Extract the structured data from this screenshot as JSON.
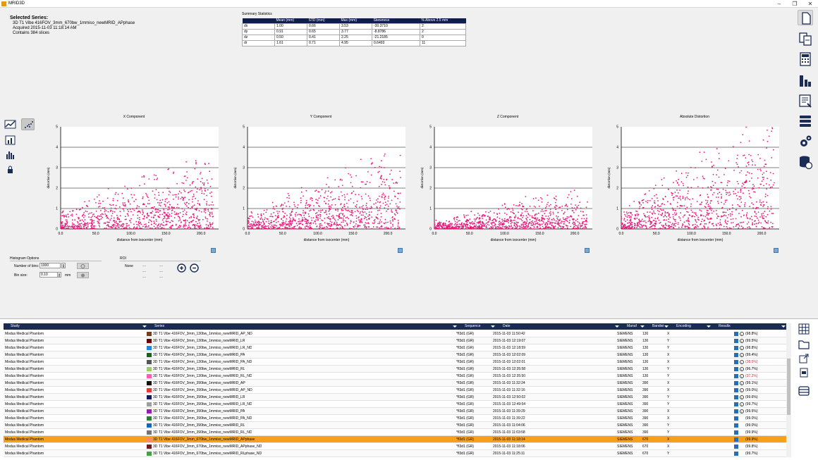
{
  "app": {
    "title": "MRID3D"
  },
  "series_info": {
    "header": "Selected Series:",
    "name": "3D T1 Vibe 416FOV_3mm_670bw_1mmiso_newMRID_APphase",
    "acquired": "Acquired 2015-11-03 11:18:14 AM",
    "slices": "Contains 384 slices"
  },
  "summary": {
    "caption": "Summary Statistics",
    "headers": [
      "",
      "Mean (mm)",
      "STD (mm)",
      "Max (mm)",
      "Skewness",
      "% Above 2.5 mm"
    ],
    "rows": [
      [
        "dx",
        "1.00",
        "0.66",
        "3.53",
        "-30.3710",
        "2"
      ],
      [
        "dy",
        "0.91",
        "0.65",
        "3.77",
        "-8.8786",
        "2"
      ],
      [
        "dz",
        "0.50",
        "0.41",
        "2.25",
        "-21.2185",
        "0"
      ],
      [
        "dr",
        "1.61",
        "0.71",
        "4.95",
        "0.6493",
        "11"
      ]
    ]
  },
  "plots": [
    {
      "title": "X Component",
      "xlabel": "distance from isocenter (mm)",
      "ylabel": "distortion (mm)"
    },
    {
      "title": "Y Component",
      "xlabel": "distance from isocenter (mm)",
      "ylabel": "distortion (mm)"
    },
    {
      "title": "Z Component",
      "xlabel": "distance from isocenter (mm)",
      "ylabel": "distortion (mm)"
    },
    {
      "title": "Absolute Distortion",
      "xlabel": "distance from isocenter (mm)",
      "ylabel": "distortion (mm)"
    }
  ],
  "axis": {
    "x_ticks": [
      "0.0",
      "50.0",
      "100.0",
      "150.0",
      "200.0"
    ],
    "y_ticks": [
      "0",
      "1",
      "2",
      "3",
      "4",
      "5"
    ]
  },
  "colors": {
    "point": "#e8197a",
    "header_bg": "#1a2b55",
    "selected_row": "#f7a11a",
    "table_header": "#0d1f4a"
  },
  "histogram": {
    "title": "Histogram Options",
    "bins_label": "Number of bins:",
    "bins_value": "1000",
    "binsize_label": "Bin size:",
    "binsize_value": "0.10",
    "binsize_unit": "mm"
  },
  "roi": {
    "title": "ROI",
    "value": "None",
    "placeholders": [
      "—",
      "—",
      "—",
      "—",
      "—",
      "—"
    ]
  },
  "grid": {
    "columns": [
      "Study",
      "Series",
      "Sequence",
      "Date",
      "Manuf",
      "Bandwi",
      "Encoding",
      "Results"
    ],
    "rows": [
      {
        "study": "Modus Medical Phantom",
        "series": "3D T1 Vibe 416FOV_3mm_130bw_1mmiso_newMRID_AP_ND",
        "color": "#7a3b1a",
        "seq": "*fl3d1 (GR)",
        "date": "2015-11-03 11:50:42",
        "manuf": "SIEMENS",
        "bw": "130",
        "enc": "X",
        "res": "(98.8%)",
        "warn": false
      },
      {
        "study": "Modus Medical Phantom",
        "series": "3D T1 Vibe 416FOV_3mm_130bw_1mmiso_newMRID_LR",
        "color": "#6b0000",
        "seq": "*fl3d1 (GR)",
        "date": "2015-11-03 12:19:07",
        "manuf": "SIEMENS",
        "bw": "130",
        "enc": "Y",
        "res": "(99.5%)",
        "warn": false
      },
      {
        "study": "Modus Medical Phantom",
        "series": "3D T1 Vibe 416FOV_3mm_130bw_1mmiso_newMRID_LR_ND",
        "color": "#1e88e5",
        "seq": "*fl3d1 (GR)",
        "date": "2015-11-03 12:18:59",
        "manuf": "SIEMENS",
        "bw": "130",
        "enc": "Y",
        "res": "(98.8%)",
        "warn": false
      },
      {
        "study": "Modus Medical Phantom",
        "series": "3D T1 Vibe 416FOV_3mm_130bw_1mmiso_newMRID_PA",
        "color": "#1b5e20",
        "seq": "*fl3d1 (GR)",
        "date": "2015-11-03 12:02:09",
        "manuf": "SIEMENS",
        "bw": "130",
        "enc": "X",
        "res": "(99.4%)",
        "warn": false
      },
      {
        "study": "Modus Medical Phantom",
        "series": "3D T1 Vibe 416FOV_3mm_130bw_1mmiso_newMRID_PA_ND",
        "color": "#555555",
        "seq": "*fl3d1 (GR)",
        "date": "2015-11-03 12:02:01",
        "manuf": "SIEMENS",
        "bw": "130",
        "enc": "X",
        "res": "(38.5%)",
        "warn": true
      },
      {
        "study": "Modus Medical Phantom",
        "series": "3D T1 Vibe 416FOV_3mm_130bw_1mmiso_newMRID_RL",
        "color": "#9ccc65",
        "seq": "*fl3d1 (GR)",
        "date": "2015-11-03 12:35:58",
        "manuf": "SIEMENS",
        "bw": "130",
        "enc": "Y",
        "res": "(96.7%)",
        "warn": false
      },
      {
        "study": "Modus Medical Phantom",
        "series": "3D T1 Vibe 416FOV_3mm_130bw_1mmiso_newMRID_RL_ND",
        "color": "#ff5bb0",
        "seq": "*fl3d1 (GR)",
        "date": "2015-11-03 12:35:50",
        "manuf": "SIEMENS",
        "bw": "130",
        "enc": "Y",
        "res": "(37.2%)",
        "warn": true
      },
      {
        "study": "Modus Medical Phantom",
        "series": "3D T1 Vibe 416FOV_3mm_390bw_1mmiso_newMRID_AP",
        "color": "#111111",
        "seq": "*fl3d1 (GR)",
        "date": "2015-11-03 11:32:24",
        "manuf": "SIEMENS",
        "bw": "390",
        "enc": "X",
        "res": "(99.1%)",
        "warn": false
      },
      {
        "study": "Modus Medical Phantom",
        "series": "3D T1 Vibe 416FOV_3mm_390bw_1mmiso_newMRID_AP_ND",
        "color": "#e53935",
        "seq": "*fl3d1 (GR)",
        "date": "2015-11-03 11:32:16",
        "manuf": "SIEMENS",
        "bw": "390",
        "enc": "X",
        "res": "(99.0%)",
        "warn": false
      },
      {
        "study": "Modus Medical Phantom",
        "series": "3D T1 Vibe 416FOV_3mm_390bw_1mmiso_newMRID_LR",
        "color": "#0d1b5e",
        "seq": "*fl3d1 (GR)",
        "date": "2015-11-03 12:50:02",
        "manuf": "SIEMENS",
        "bw": "390",
        "enc": "Y",
        "res": "(99.6%)",
        "warn": false
      },
      {
        "study": "Modus Medical Phantom",
        "series": "3D T1 Vibe 416FOV_3mm_390bw_1mmiso_newMRID_LR_ND",
        "color": "#9e9e9e",
        "seq": "*fl3d1 (GR)",
        "date": "2015-11-03 12:49:54",
        "manuf": "SIEMENS",
        "bw": "390",
        "enc": "Y",
        "res": "(99.7%)",
        "warn": false
      },
      {
        "study": "Modus Medical Phantom",
        "series": "3D T1 Vibe 416FOV_3mm_390bw_1mmiso_newMRID_PA",
        "color": "#8e24aa",
        "seq": "*fl3d1 (GR)",
        "date": "2015-11-03 11:39:29",
        "manuf": "SIEMENS",
        "bw": "390",
        "enc": "X",
        "res": "(99.5%)",
        "warn": false
      },
      {
        "study": "Modus Medical Phantom",
        "series": "3D T1 Vibe 416FOV_3mm_390bw_1mmiso_newMRID_PA_ND",
        "color": "#2e7d32",
        "seq": "*fl3d1 (GR)",
        "date": "2015-11-03 11:39:22",
        "manuf": "SIEMENS",
        "bw": "390",
        "enc": "X",
        "res": "(99.0%)",
        "warn": false
      },
      {
        "study": "Modus Medical Phantom",
        "series": "3D T1 Vibe 416FOV_3mm_390bw_1mmiso_newMRID_RL",
        "color": "#1565c0",
        "seq": "*fl3d1 (GR)",
        "date": "2015-11-03 11:04:06",
        "manuf": "SIEMENS",
        "bw": "390",
        "enc": "Y",
        "res": "(99.0%)",
        "warn": false
      },
      {
        "study": "Modus Medical Phantom",
        "series": "3D T1 Vibe 416FOV_3mm_390bw_1mmiso_newMRID_RL_ND",
        "color": "#757575",
        "seq": "*fl3d1 (GR)",
        "date": "2015-11-03 11:03:58",
        "manuf": "SIEMENS",
        "bw": "390",
        "enc": "Y",
        "res": "(99.9%)",
        "warn": false
      },
      {
        "study": "Modus Medical Phantom",
        "series": "3D T1 Vibe 416FOV_3mm_670bw_1mmiso_newMRID_APphase",
        "color": "#ff8a65",
        "seq": "*fl3d1 (GR)",
        "date": "2015-11-03 11:18:14",
        "manuf": "SIEMENS",
        "bw": "670",
        "enc": "X",
        "res": "(99.9%)",
        "warn": false
      },
      {
        "study": "Modus Medical Phantom",
        "series": "3D T1 Vibe 416FOV_3mm_670bw_1mmiso_newMRID_APphase_ND",
        "color": "#6d1b1b",
        "seq": "*fl3d1 (GR)",
        "date": "2015-11-03 11:18:06",
        "manuf": "SIEMENS",
        "bw": "670",
        "enc": "X",
        "res": "(99.8%)",
        "warn": false
      },
      {
        "study": "Modus Medical Phantom",
        "series": "3D T1 Vibe 416FOV_3mm_670bw_1mmiso_newMRID_RLphase_ND",
        "color": "#43a047",
        "seq": "*fl3d1 (GR)",
        "date": "2015-11-03 11:25:11",
        "manuf": "SIEMENS",
        "bw": "670",
        "enc": "Y",
        "res": "(99.7%)",
        "warn": false
      }
    ],
    "selected_index": 15
  }
}
